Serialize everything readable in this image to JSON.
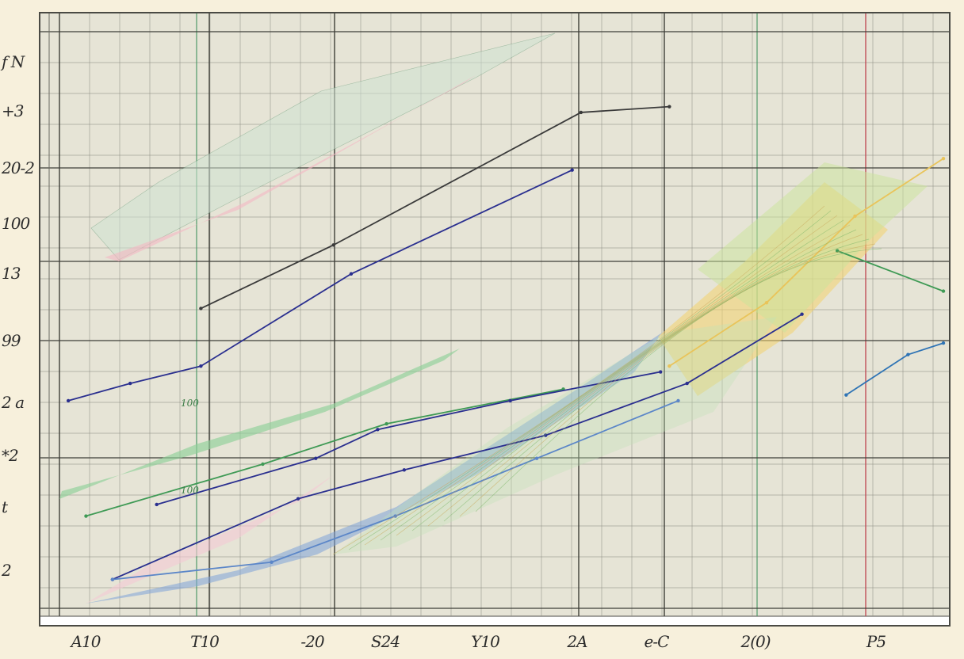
{
  "chart_data": {
    "type": "line",
    "title": "",
    "xlabel": "",
    "ylabel": "",
    "grid": true,
    "legend": null,
    "background": "graph paper",
    "y_tick_labels": [
      "f N",
      "+3",
      "20-2",
      "100",
      "13",
      "99",
      "2 a",
      "*2",
      "t",
      "2"
    ],
    "x_tick_labels": [
      "A10",
      "T10",
      "-20",
      "S24",
      "Y10",
      "2A",
      "e-C",
      "2(0)",
      "P5"
    ],
    "annotations": [
      "100",
      "100"
    ],
    "x": [
      0,
      1,
      2,
      3,
      4,
      5,
      6,
      7,
      8,
      9,
      10
    ],
    "xlim": [
      0,
      10
    ],
    "ylim": [
      0,
      10
    ],
    "series": [
      {
        "name": "upper navy band",
        "color": "#2a2f8f",
        "points": [
          [
            0.1,
            3.6
          ],
          [
            0.8,
            3.9
          ],
          [
            1.6,
            4.2
          ],
          [
            3.3,
            5.8
          ],
          [
            5.8,
            7.6
          ]
        ]
      },
      {
        "name": "upper envelope (gray mesh)",
        "color": "#3a3a3a",
        "points": [
          [
            1.6,
            5.2
          ],
          [
            3.1,
            6.3
          ],
          [
            5.9,
            8.6
          ],
          [
            6.9,
            8.7
          ]
        ]
      },
      {
        "name": "green band",
        "color": "#3f9a55",
        "points": [
          [
            0.3,
            1.6
          ],
          [
            2.3,
            2.5
          ],
          [
            3.7,
            3.2
          ],
          [
            5.7,
            3.8
          ]
        ]
      },
      {
        "name": "navy line 2",
        "color": "#2a2f8f",
        "points": [
          [
            1.1,
            1.8
          ],
          [
            2.9,
            2.6
          ],
          [
            3.6,
            3.1
          ],
          [
            5.1,
            3.6
          ],
          [
            6.8,
            4.1
          ]
        ]
      },
      {
        "name": "navy line 3",
        "color": "#2a2f8f",
        "points": [
          [
            0.6,
            0.5
          ],
          [
            2.7,
            1.9
          ],
          [
            3.9,
            2.4
          ],
          [
            5.5,
            3.0
          ],
          [
            7.1,
            3.9
          ],
          [
            8.4,
            5.1
          ]
        ]
      },
      {
        "name": "blue band",
        "color": "#5b86c8",
        "points": [
          [
            0.6,
            0.5
          ],
          [
            2.4,
            0.8
          ],
          [
            3.8,
            1.6
          ],
          [
            5.4,
            2.6
          ],
          [
            7.0,
            3.6
          ]
        ]
      },
      {
        "name": "yellow-green fan",
        "color": "#e9c45a",
        "points": [
          [
            6.9,
            4.2
          ],
          [
            8.0,
            5.3
          ],
          [
            9.0,
            6.8
          ],
          [
            10.0,
            7.8
          ]
        ]
      },
      {
        "name": "green curve right",
        "color": "#3f9a55",
        "points": [
          [
            8.8,
            6.2
          ],
          [
            10.0,
            5.5
          ]
        ]
      },
      {
        "name": "blue curve right",
        "color": "#2f74b5",
        "points": [
          [
            8.9,
            3.7
          ],
          [
            9.6,
            4.4
          ],
          [
            10.0,
            4.6
          ]
        ]
      }
    ]
  }
}
